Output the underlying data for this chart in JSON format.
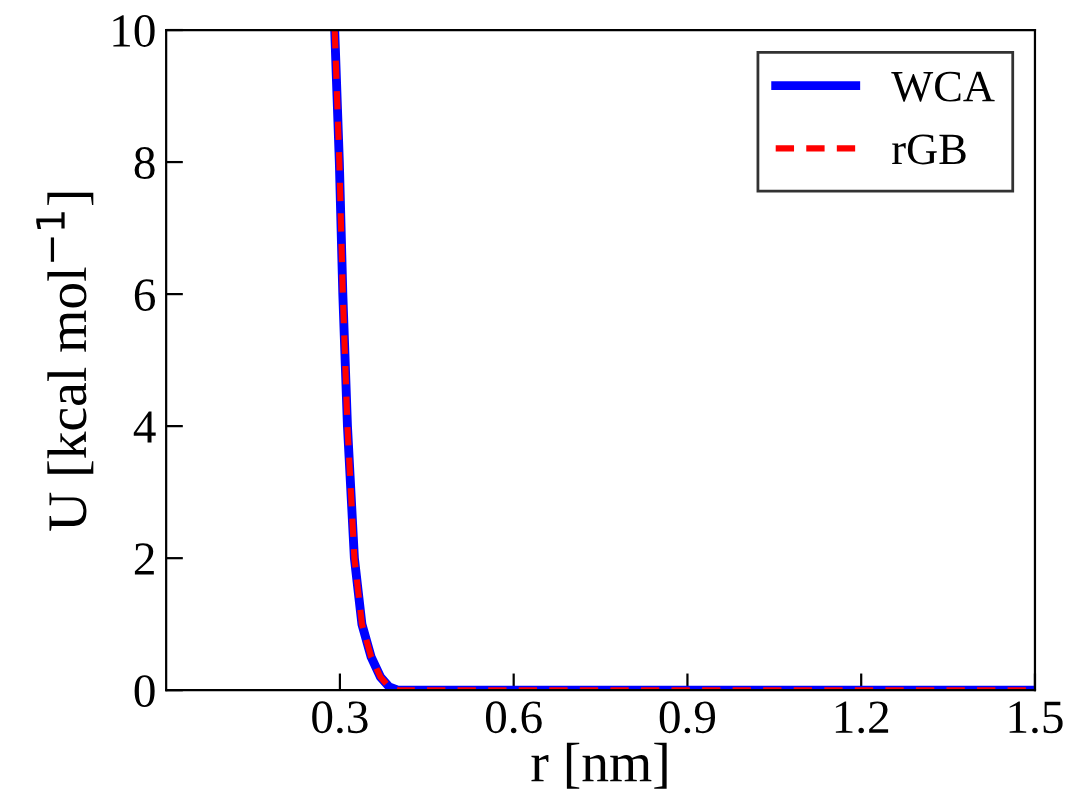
{
  "chart_data": {
    "type": "line",
    "xlabel": "r [nm]",
    "ylabel": "U [kcal mol$^{−1}$]",
    "xlim": [
      0,
      1.5
    ],
    "ylim": [
      0,
      10
    ],
    "xticks": [
      0.3,
      0.6,
      0.9,
      1.2,
      1.5
    ],
    "yticks": [
      0,
      2,
      4,
      6,
      8,
      10
    ],
    "legend": "top right",
    "grid": false,
    "series": [
      {
        "name": "WCA",
        "color": "#0000ff",
        "line_style": "solid",
        "x": [
          0.291,
          0.295,
          0.299,
          0.305,
          0.313,
          0.325,
          0.338,
          0.354,
          0.37,
          0.385,
          0.4,
          1.5
        ],
        "values": [
          10,
          9,
          8,
          6,
          4,
          2,
          1,
          0.5,
          0.2,
          0.05,
          0,
          0
        ]
      },
      {
        "name": "rGB",
        "color": "#ff0000",
        "line_style": "dashed",
        "x": [
          0.291,
          0.295,
          0.299,
          0.305,
          0.313,
          0.325,
          0.338,
          0.354,
          0.37,
          0.385,
          0.4,
          1.5
        ],
        "values": [
          10,
          9,
          8,
          6,
          4,
          2,
          1,
          0.5,
          0.2,
          0.05,
          0,
          0
        ]
      }
    ]
  }
}
